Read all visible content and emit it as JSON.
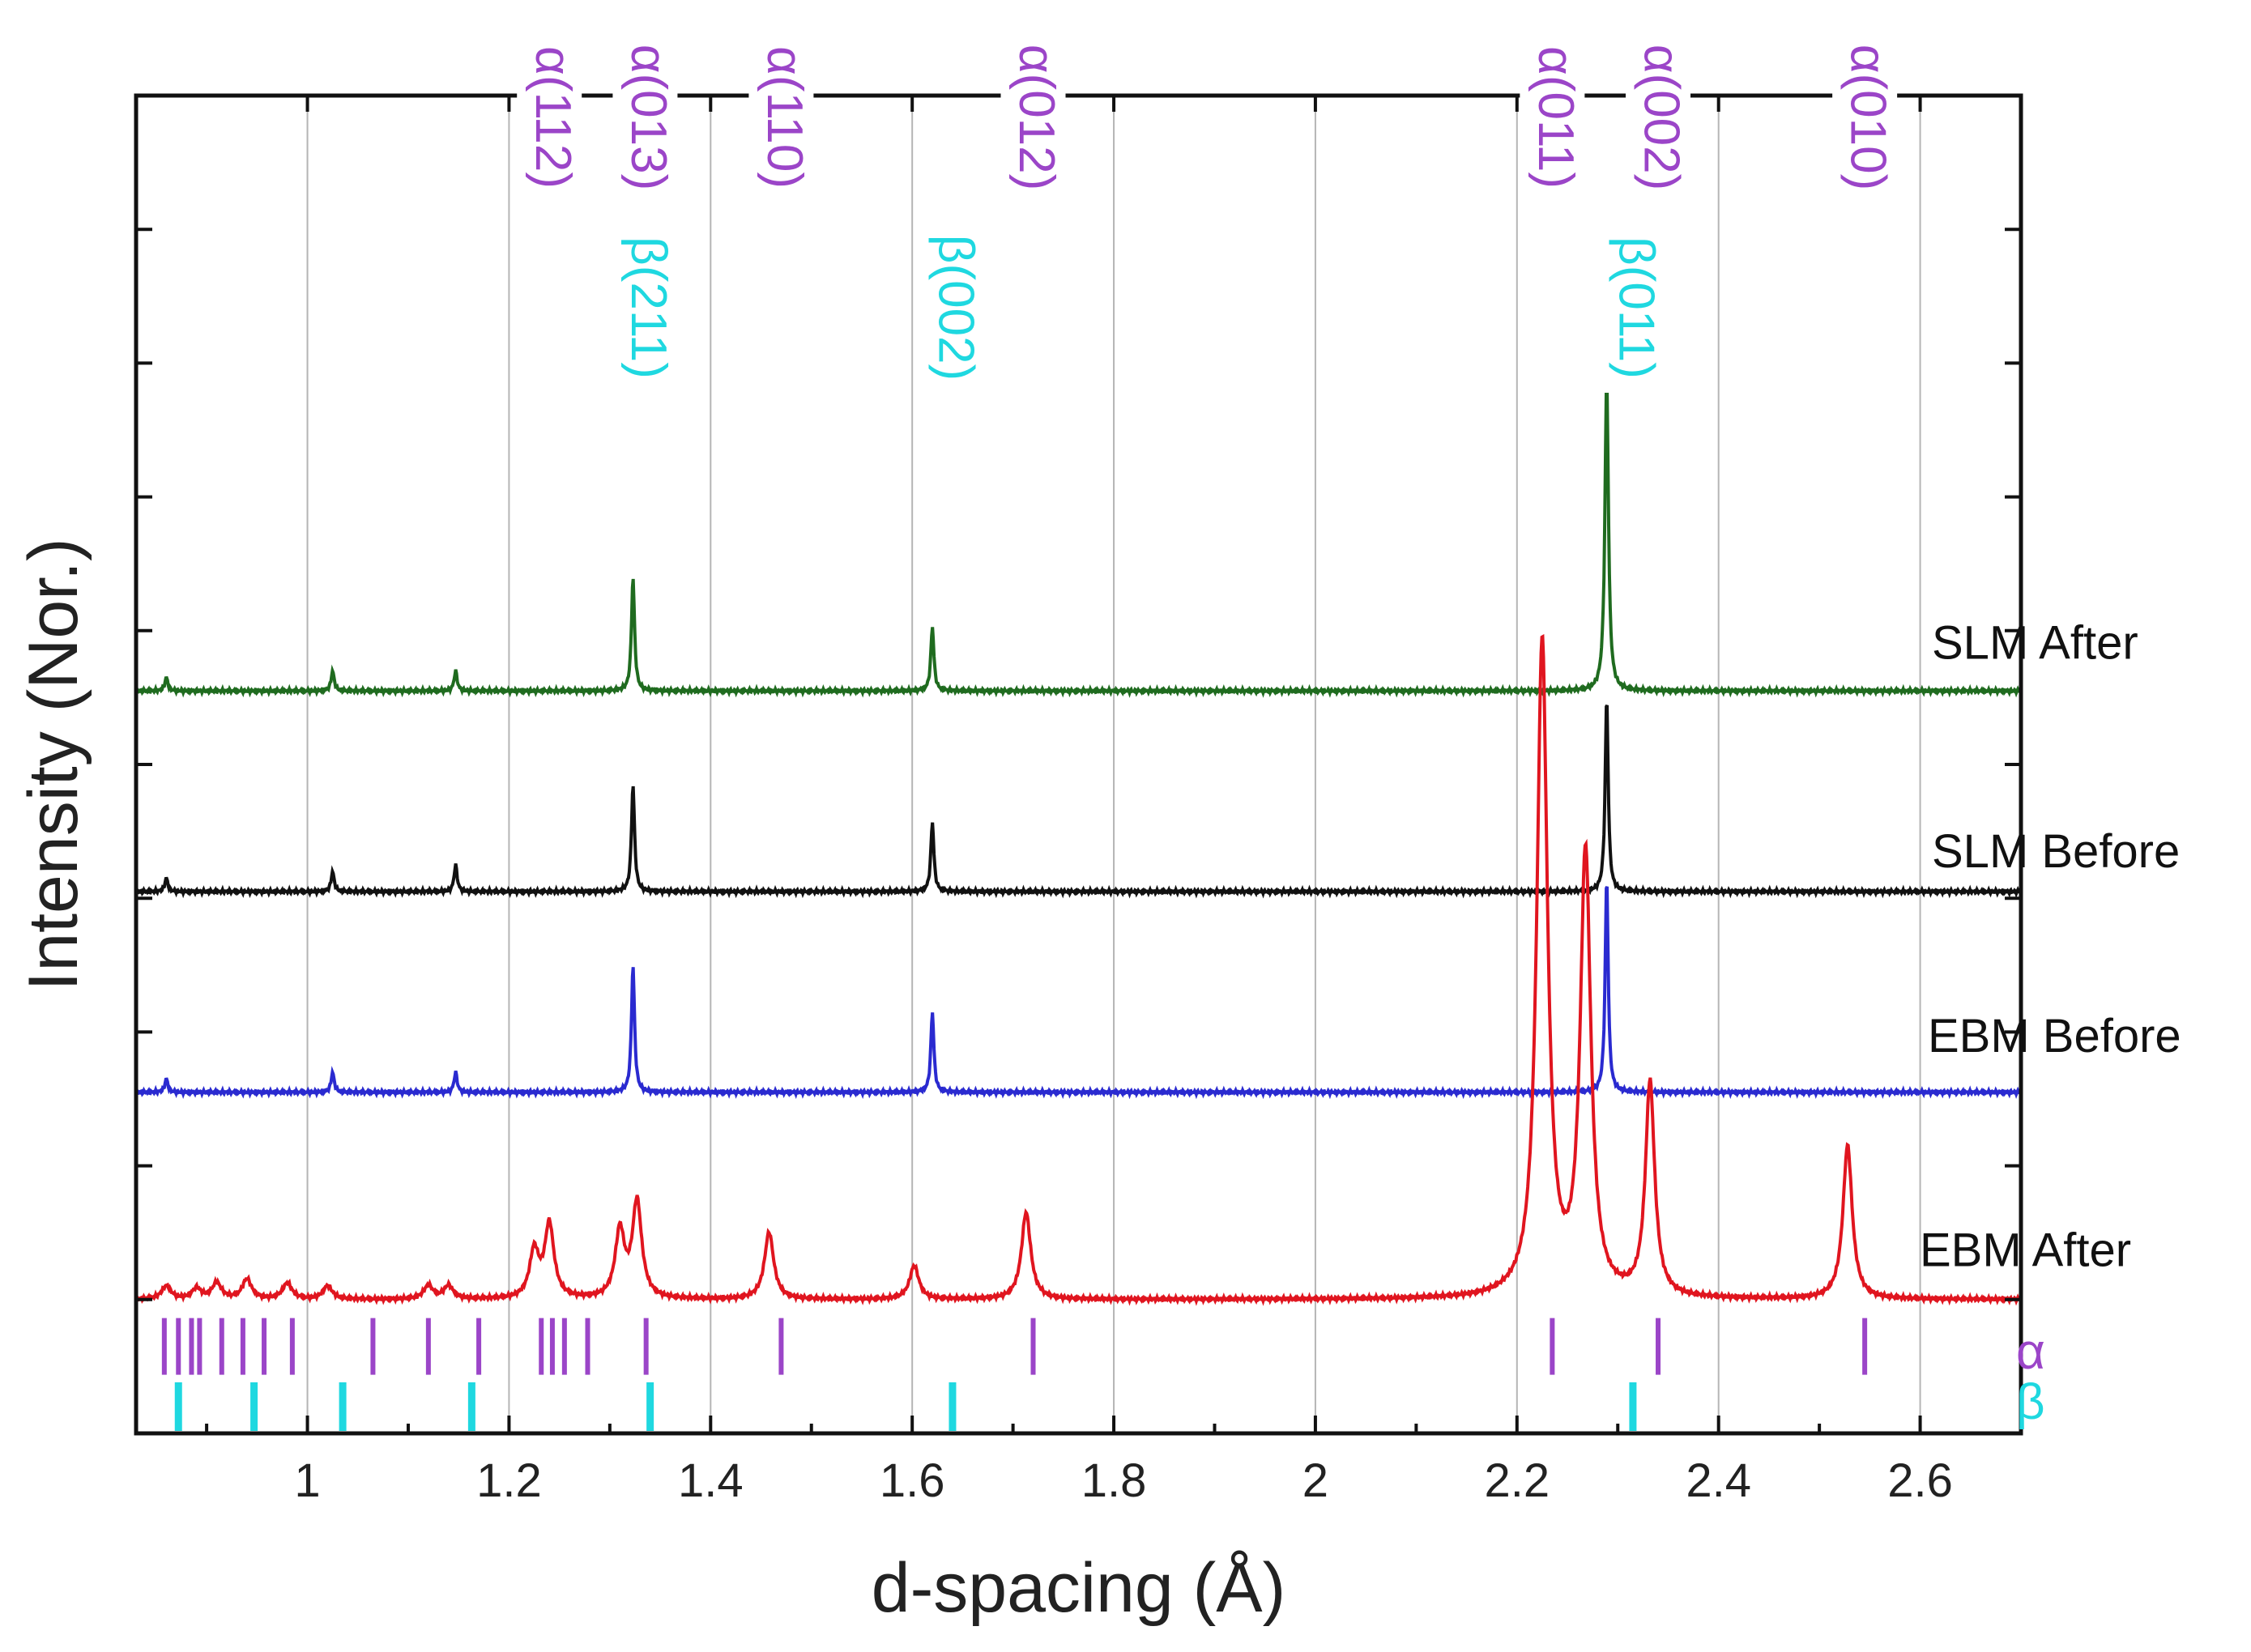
{
  "chart_data": {
    "type": "line",
    "title": "",
    "xlabel": "d-spacing (Å)",
    "ylabel": "Intensity (Nor.)",
    "xlim": [
      0.83,
      2.7
    ],
    "ylim": [
      0,
      1.0
    ],
    "grid": true,
    "x_ticks": [
      1,
      1.2,
      1.4,
      1.6,
      1.8,
      2,
      2.2,
      2.4,
      2.6
    ],
    "x_tick_labels": [
      "1",
      "1.2",
      "1.4",
      "1.6",
      "1.8",
      "2",
      "2.2",
      "2.4",
      "2.6"
    ],
    "series": [
      {
        "name": "SLM After",
        "color": "#1f6b1f",
        "baseline": 0.555,
        "peaks": [
          {
            "x": 0.86,
            "h": 0.01
          },
          {
            "x": 1.025,
            "h": 0.015
          },
          {
            "x": 1.147,
            "h": 0.015
          },
          {
            "x": 1.323,
            "h": 0.085
          },
          {
            "x": 1.62,
            "h": 0.048
          },
          {
            "x": 2.289,
            "h": 0.235
          }
        ]
      },
      {
        "name": "SLM Before",
        "color": "#111111",
        "baseline": 0.405,
        "peaks": [
          {
            "x": 0.86,
            "h": 0.01
          },
          {
            "x": 1.025,
            "h": 0.015
          },
          {
            "x": 1.147,
            "h": 0.02
          },
          {
            "x": 1.323,
            "h": 0.08
          },
          {
            "x": 1.62,
            "h": 0.052
          },
          {
            "x": 2.289,
            "h": 0.145
          }
        ]
      },
      {
        "name": "EBM Before",
        "color": "#2a2ad0",
        "baseline": 0.255,
        "peaks": [
          {
            "x": 0.86,
            "h": 0.01
          },
          {
            "x": 1.025,
            "h": 0.015
          },
          {
            "x": 1.147,
            "h": 0.015
          },
          {
            "x": 1.323,
            "h": 0.095
          },
          {
            "x": 1.62,
            "h": 0.06
          },
          {
            "x": 2.289,
            "h": 0.16
          }
        ]
      },
      {
        "name": "EBM After",
        "color": "#e0151f",
        "baseline": 0.1,
        "peaks": [
          {
            "x": 0.86,
            "h": 0.01
          },
          {
            "x": 0.89,
            "h": 0.008
          },
          {
            "x": 0.91,
            "h": 0.012
          },
          {
            "x": 0.94,
            "h": 0.015
          },
          {
            "x": 0.98,
            "h": 0.012
          },
          {
            "x": 1.02,
            "h": 0.01
          },
          {
            "x": 1.12,
            "h": 0.01
          },
          {
            "x": 1.14,
            "h": 0.01
          },
          {
            "x": 1.225,
            "h": 0.035
          },
          {
            "x": 1.24,
            "h": 0.055
          },
          {
            "x": 1.31,
            "h": 0.05
          },
          {
            "x": 1.327,
            "h": 0.072
          },
          {
            "x": 1.458,
            "h": 0.05
          },
          {
            "x": 1.602,
            "h": 0.025
          },
          {
            "x": 1.713,
            "h": 0.065
          },
          {
            "x": 2.225,
            "h": 0.49
          },
          {
            "x": 2.268,
            "h": 0.33
          },
          {
            "x": 2.332,
            "h": 0.16
          },
          {
            "x": 2.528,
            "h": 0.115
          }
        ]
      }
    ],
    "reference_markers": [
      {
        "phase": "α",
        "color": "#9b45c8",
        "y": 0.065,
        "positions": [
          0.858,
          0.872,
          0.885,
          0.893,
          0.915,
          0.936,
          0.957,
          0.985,
          1.065,
          1.12,
          1.17,
          1.232,
          1.243,
          1.255,
          1.278,
          1.336,
          1.47,
          1.72,
          2.235,
          2.34,
          2.545
        ]
      },
      {
        "phase": "β",
        "color": "#1fd8e0",
        "y": 0.02,
        "positions": [
          0.872,
          0.947,
          1.035,
          1.163,
          1.34,
          1.64,
          2.315
        ]
      }
    ],
    "peak_labels": [
      {
        "text": "α(112)",
        "x": 1.24,
        "phase": "alpha"
      },
      {
        "text": "α(013)",
        "x": 1.335,
        "phase": "alpha"
      },
      {
        "text": "α(110)",
        "x": 1.47,
        "phase": "alpha"
      },
      {
        "text": "α(012)",
        "x": 1.72,
        "phase": "alpha"
      },
      {
        "text": "α(011)",
        "x": 2.235,
        "phase": "alpha"
      },
      {
        "text": "α(002)",
        "x": 2.34,
        "phase": "alpha"
      },
      {
        "text": "α(010)",
        "x": 2.545,
        "phase": "alpha"
      },
      {
        "text": "β(211)",
        "x": 1.335,
        "phase": "beta"
      },
      {
        "text": "β(002)",
        "x": 1.64,
        "phase": "beta"
      },
      {
        "text": "β(011)",
        "x": 2.315,
        "phase": "beta"
      }
    ],
    "legend_glyphs": [
      {
        "text": "α",
        "phase": "alpha"
      },
      {
        "text": "β",
        "phase": "beta"
      }
    ]
  },
  "colors": {
    "alpha": "#9b45c8",
    "beta": "#1fd8e0"
  }
}
